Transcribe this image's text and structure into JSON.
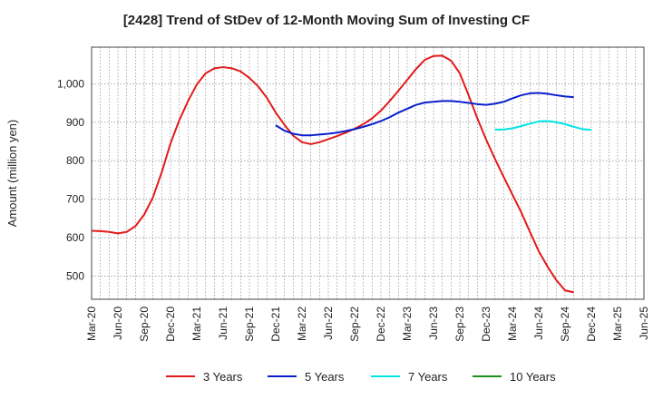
{
  "chart_data": {
    "type": "line",
    "title": "[2428]  Trend of StDev of 12-Month Moving Sum of Investing CF",
    "xlabel": "",
    "ylabel": "Amount (million yen)",
    "ylim": [
      440,
      1095
    ],
    "yticks": [
      500,
      600,
      700,
      800,
      900,
      1000
    ],
    "ytick_labels": [
      "500",
      "600",
      "700",
      "800",
      "900",
      "1,000"
    ],
    "x_start": "Mar-20",
    "x_end": "Jun-25",
    "tick_labels": [
      "Mar-20",
      "Jun-20",
      "Sep-20",
      "Dec-20",
      "Mar-21",
      "Jun-21",
      "Sep-21",
      "Dec-21",
      "Mar-22",
      "Jun-22",
      "Sep-22",
      "Dec-22",
      "Mar-23",
      "Jun-23",
      "Sep-23",
      "Dec-23",
      "Mar-24",
      "Jun-24",
      "Sep-24",
      "Dec-24",
      "Mar-25",
      "Jun-25"
    ],
    "grid": true,
    "legend_position": "bottom",
    "series": [
      {
        "name": "3 Years",
        "color": "#e31a1c",
        "start_index": 0,
        "values": [
          618,
          617,
          615,
          611,
          615,
          630,
          660,
          705,
          770,
          845,
          905,
          955,
          998,
          1027,
          1040,
          1043,
          1040,
          1032,
          1015,
          993,
          963,
          925,
          893,
          865,
          848,
          843,
          848,
          856,
          864,
          873,
          883,
          895,
          910,
          930,
          955,
          982,
          1010,
          1038,
          1062,
          1072,
          1073,
          1060,
          1027,
          970,
          910,
          855,
          805,
          758,
          712,
          666,
          615,
          565,
          525,
          490,
          463,
          458
        ]
      },
      {
        "name": "5 Years",
        "color": "#0a1fcc",
        "start_index": 21,
        "values": [
          892,
          878,
          870,
          866,
          866,
          868,
          870,
          873,
          877,
          882,
          888,
          895,
          903,
          913,
          925,
          935,
          945,
          951,
          953,
          955,
          955,
          953,
          950,
          947,
          945,
          948,
          953,
          962,
          970,
          975,
          976,
          974,
          970,
          967,
          965
        ]
      },
      {
        "name": "7 Years",
        "color": "#00e5e5",
        "start_index": 46,
        "values": [
          881,
          881,
          884,
          890,
          896,
          902,
          903,
          900,
          895,
          888,
          882,
          880
        ]
      },
      {
        "name": "10 Years",
        "color": "#1e8f1e",
        "start_index": 0,
        "values": []
      }
    ]
  }
}
